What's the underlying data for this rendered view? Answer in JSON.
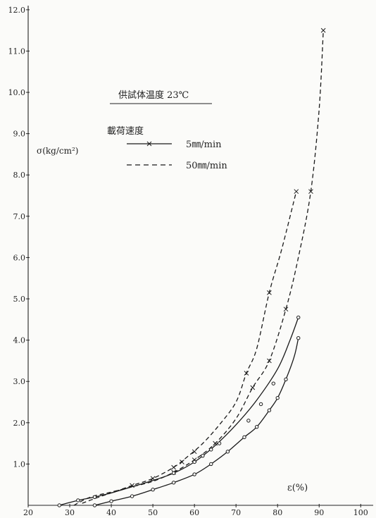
{
  "chart_data": {
    "type": "line",
    "annotation": "供試体温度 23℃",
    "legend_title": "載荷速度",
    "ylabel": "σ(kg/cm²)",
    "xlabel": "ε(%)",
    "xlim": [
      20,
      103
    ],
    "ylim": [
      0,
      12.1
    ],
    "x_ticks": [
      20,
      30,
      40,
      50,
      60,
      70,
      80,
      90,
      100
    ],
    "y_ticks": [
      1.0,
      2.0,
      3.0,
      4.0,
      5.0,
      6.0,
      7.0,
      8.0,
      9.0,
      10.0,
      11.0,
      12.0
    ],
    "x_tick_labels": [
      "20",
      "30",
      "40",
      "50",
      "60",
      "70",
      "80",
      "90",
      "100"
    ],
    "y_tick_labels": [
      "1.0",
      "2.0",
      "3.0",
      "4.0",
      "5.0",
      "6.0",
      "7.0",
      "8.0",
      "9.0",
      "10.0",
      "11.0",
      "12.0"
    ],
    "legend": [
      {
        "label": "5㎜/min",
        "style": "solid",
        "marker": "x"
      },
      {
        "label": "50㎜/min",
        "style": "dashed",
        "marker": "x"
      }
    ],
    "series": [
      {
        "style": "dashed",
        "points": [
          [
            33,
            0.05
          ],
          [
            37,
            0.2
          ],
          [
            40,
            0.3
          ],
          [
            45,
            0.48
          ],
          [
            50,
            0.65
          ],
          [
            55,
            0.92
          ],
          [
            58,
            1.15
          ],
          [
            62,
            1.5
          ],
          [
            66,
            1.95
          ],
          [
            70,
            2.5
          ],
          [
            72.5,
            3.2
          ],
          [
            75,
            3.8
          ],
          [
            78,
            5.15
          ],
          [
            81,
            6.2
          ],
          [
            84.5,
            7.6
          ]
        ],
        "marker_points": [
          [
            45,
            0.48
          ],
          [
            50,
            0.65
          ],
          [
            55,
            0.92
          ],
          [
            57,
            1.05
          ],
          [
            60,
            1.3
          ],
          [
            72.5,
            3.2
          ],
          [
            78,
            5.15
          ],
          [
            84.5,
            7.6
          ]
        ]
      },
      {
        "style": "dashed",
        "points": [
          [
            31,
            0.0
          ],
          [
            35,
            0.2
          ],
          [
            40,
            0.32
          ],
          [
            45,
            0.45
          ],
          [
            50,
            0.58
          ],
          [
            55,
            0.8
          ],
          [
            60,
            1.1
          ],
          [
            65,
            1.5
          ],
          [
            70,
            2.1
          ],
          [
            74,
            2.85
          ],
          [
            78,
            3.5
          ],
          [
            82,
            4.75
          ],
          [
            85,
            6.0
          ],
          [
            88,
            7.6
          ],
          [
            90,
            9.6
          ],
          [
            91,
            11.5
          ]
        ],
        "marker_points": [
          [
            55,
            0.8
          ],
          [
            60,
            1.1
          ],
          [
            65,
            1.5
          ],
          [
            74,
            2.85
          ],
          [
            78,
            3.5
          ],
          [
            82,
            4.75
          ],
          [
            88,
            7.6
          ],
          [
            91,
            11.5
          ]
        ]
      },
      {
        "style": "solid",
        "points": [
          [
            27.5,
            0.0
          ],
          [
            32,
            0.12
          ],
          [
            36,
            0.2
          ],
          [
            40,
            0.3
          ],
          [
            45,
            0.45
          ],
          [
            50,
            0.6
          ],
          [
            55,
            0.78
          ],
          [
            60,
            1.05
          ],
          [
            65,
            1.45
          ],
          [
            70,
            1.95
          ],
          [
            75,
            2.55
          ],
          [
            80,
            3.3
          ],
          [
            83,
            4.0
          ],
          [
            85,
            4.55
          ]
        ],
        "marker_points": [
          [
            27.5,
            0.0
          ],
          [
            32,
            0.12
          ],
          [
            36,
            0.2
          ],
          [
            55,
            0.78
          ],
          [
            60,
            1.05
          ],
          [
            62,
            1.2
          ],
          [
            64,
            1.35
          ],
          [
            66,
            1.5
          ],
          [
            73,
            2.05
          ],
          [
            76,
            2.45
          ],
          [
            79,
            2.95
          ],
          [
            85,
            4.55
          ]
        ]
      },
      {
        "style": "solid",
        "points": [
          [
            36,
            0.0
          ],
          [
            40,
            0.1
          ],
          [
            45,
            0.22
          ],
          [
            50,
            0.38
          ],
          [
            55,
            0.55
          ],
          [
            60,
            0.75
          ],
          [
            64,
            1.0
          ],
          [
            68,
            1.3
          ],
          [
            72,
            1.65
          ],
          [
            75,
            1.9
          ],
          [
            78,
            2.3
          ],
          [
            80,
            2.6
          ],
          [
            82,
            3.05
          ],
          [
            84,
            3.6
          ],
          [
            85,
            4.05
          ]
        ],
        "marker_points": [
          [
            36,
            0.0
          ],
          [
            40,
            0.1
          ],
          [
            45,
            0.22
          ],
          [
            50,
            0.38
          ],
          [
            55,
            0.55
          ],
          [
            60,
            0.75
          ],
          [
            64,
            1.0
          ],
          [
            68,
            1.3
          ],
          [
            72,
            1.65
          ],
          [
            75,
            1.9
          ],
          [
            78,
            2.3
          ],
          [
            80,
            2.6
          ],
          [
            82,
            3.05
          ],
          [
            85,
            4.05
          ]
        ]
      }
    ]
  }
}
